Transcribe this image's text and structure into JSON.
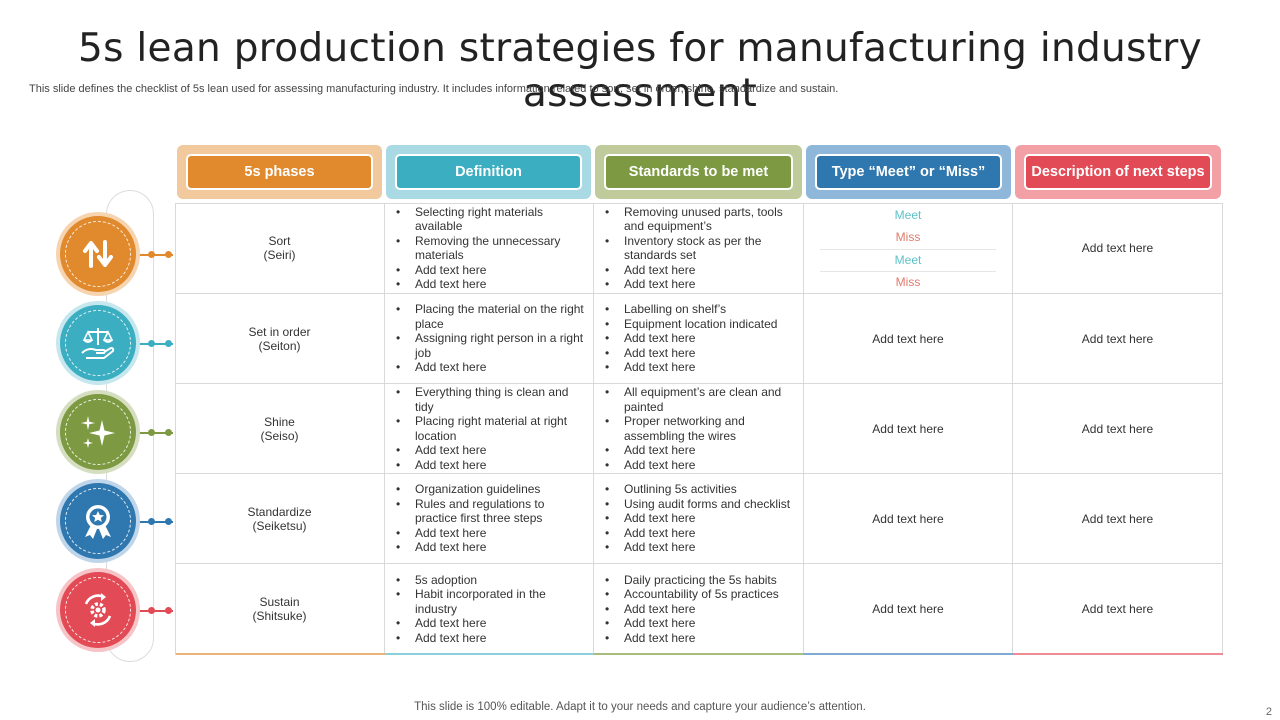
{
  "title": "5s lean production strategies for manufacturing industry assessment",
  "subtitle": "This slide defines the checklist of 5s lean used for assessing manufacturing industry. It includes information related to sort, set in order, shine, standardize and sustain.",
  "footer": "This slide is 100% editable. Adapt it to your needs and capture your audience’s attention.",
  "page_number": "2",
  "colors": {
    "orange": "#E0892D",
    "teal": "#3BAEC1",
    "green": "#7D9A42",
    "blue": "#2F77AF",
    "red": "#E24A55"
  },
  "headers": [
    "5s phases",
    "Definition",
    "Standards to be met",
    "Type “Meet” or “Miss”",
    "Description of next steps"
  ],
  "icons": [
    "up-down-arrows-icon",
    "scale-hand-icon",
    "sparkle-icon",
    "award-badge-icon",
    "gear-cycle-icon"
  ],
  "rows": [
    {
      "phase": "Sort",
      "phase_jp": "(Seiri)",
      "definition": [
        "Selecting right materials available",
        "Removing the unnecessary materials",
        "Add text here",
        "Add text here"
      ],
      "standards": [
        "Removing unused parts, tools and equipment’s",
        "Inventory stock as per the standards set",
        "Add text here",
        "Add text here"
      ],
      "type": [
        "Meet",
        "Miss",
        "Meet",
        "Miss"
      ],
      "next": "Add text here"
    },
    {
      "phase": "Set in order",
      "phase_jp": "(Seiton)",
      "definition": [
        "Placing the material on the right place",
        "Assigning right person in a right job",
        "Add text here"
      ],
      "standards": [
        "Labelling on shelf’s",
        "Equipment location indicated",
        "Add text here",
        "Add text here",
        "Add text here"
      ],
      "type": "Add text here",
      "next": "Add text here"
    },
    {
      "phase": "Shine",
      "phase_jp": "(Seiso)",
      "definition": [
        "Everything thing is clean and tidy",
        "Placing right material at right location",
        "Add text here",
        "Add text here"
      ],
      "standards": [
        "All equipment’s are clean and painted",
        "Proper networking and assembling the wires",
        "Add text here",
        "Add text here"
      ],
      "type": "Add text here",
      "next": "Add text here"
    },
    {
      "phase": "Standardize",
      "phase_jp": "(Seiketsu)",
      "definition": [
        "Organization guidelines",
        "Rules and regulations to practice first three steps",
        "Add text here",
        "Add text here"
      ],
      "standards": [
        "Outlining 5s activities",
        "Using audit forms and checklist",
        "Add text here",
        "Add text here",
        "Add text here"
      ],
      "type": "Add text here",
      "next": "Add text here"
    },
    {
      "phase": "Sustain",
      "phase_jp": "(Shitsuke)",
      "definition": [
        "5s adoption",
        "Habit incorporated in the industry",
        "Add text here",
        "Add text here"
      ],
      "standards": [
        "Daily practicing the 5s habits",
        "Accountability of 5s practices",
        "Add text here",
        "Add text here",
        "Add text here"
      ],
      "type": "Add text here",
      "next": "Add text here"
    }
  ]
}
